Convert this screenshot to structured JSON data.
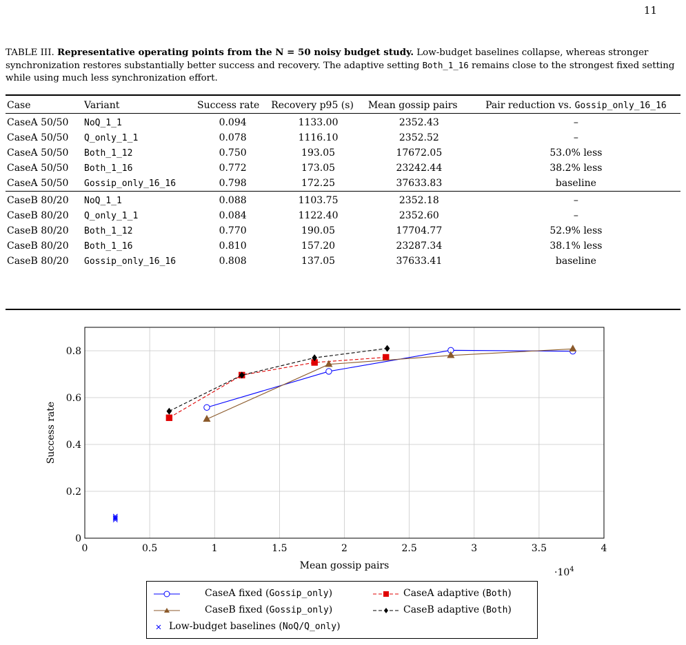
{
  "page_number": "11",
  "caption": {
    "label": "TABLE III.",
    "title": "Representative operating points from the N = 50 noisy budget study.",
    "text_a": "Low-budget baselines collapse, whereas stronger synchronization restores substantially better success and recovery. The adaptive setting",
    "mono_name": "Both_1_16",
    "text_b": "remains close to the strongest fixed setting while using much less synchronization effort."
  },
  "table": {
    "headers": {
      "case": "Case",
      "variant": "Variant",
      "success": "Success rate",
      "recovery": "Recovery p95 (s)",
      "pairs": "Mean gossip pairs",
      "reduction_prefix": "Pair reduction vs.",
      "reduction_ref": "Gossip_only_16_16"
    },
    "groups": [
      [
        {
          "case": "CaseA 50/50",
          "variant": "NoQ_1_1",
          "success": "0.094",
          "recovery": "1133.00",
          "pairs": "2352.43",
          "reduction": "–"
        },
        {
          "case": "CaseA 50/50",
          "variant": "Q_only_1_1",
          "success": "0.078",
          "recovery": "1116.10",
          "pairs": "2352.52",
          "reduction": "–"
        },
        {
          "case": "CaseA 50/50",
          "variant": "Both_1_12",
          "success": "0.750",
          "recovery": "193.05",
          "pairs": "17672.05",
          "reduction": "53.0% less"
        },
        {
          "case": "CaseA 50/50",
          "variant": "Both_1_16",
          "success": "0.772",
          "recovery": "173.05",
          "pairs": "23242.44",
          "reduction": "38.2% less"
        },
        {
          "case": "CaseA 50/50",
          "variant": "Gossip_only_16_16",
          "success": "0.798",
          "recovery": "172.25",
          "pairs": "37633.83",
          "reduction": "baseline"
        }
      ],
      [
        {
          "case": "CaseB 80/20",
          "variant": "NoQ_1_1",
          "success": "0.088",
          "recovery": "1103.75",
          "pairs": "2352.18",
          "reduction": "–"
        },
        {
          "case": "CaseB 80/20",
          "variant": "Q_only_1_1",
          "success": "0.084",
          "recovery": "1122.40",
          "pairs": "2352.60",
          "reduction": "–"
        },
        {
          "case": "CaseB 80/20",
          "variant": "Both_1_12",
          "success": "0.770",
          "recovery": "190.05",
          "pairs": "17704.77",
          "reduction": "52.9% less"
        },
        {
          "case": "CaseB 80/20",
          "variant": "Both_1_16",
          "success": "0.810",
          "recovery": "157.20",
          "pairs": "23287.34",
          "reduction": "38.1% less"
        },
        {
          "case": "CaseB 80/20",
          "variant": "Gossip_only_16_16",
          "success": "0.808",
          "recovery": "137.05",
          "pairs": "37633.41",
          "reduction": "baseline"
        }
      ]
    ]
  },
  "chart_data": {
    "type": "line",
    "xlabel": "Mean gossip pairs",
    "ylabel": "Success rate",
    "x_multiplier_label": "·10",
    "x_multiplier_exp": "4",
    "xlim": [
      0,
      40000
    ],
    "ylim": [
      0,
      0.9
    ],
    "xticks": [
      0,
      5000,
      10000,
      15000,
      20000,
      25000,
      30000,
      35000,
      40000
    ],
    "xtick_labels": [
      "0",
      "0.5",
      "1",
      "1.5",
      "2",
      "2.5",
      "3",
      "3.5",
      "4"
    ],
    "yticks": [
      0,
      0.2,
      0.4,
      0.6,
      0.8
    ],
    "ytick_labels": [
      "0",
      "0.2",
      "0.4",
      "0.6",
      "0.8"
    ],
    "grid": true,
    "legend_position": "below",
    "series": [
      {
        "name": "CaseA fixed (Gossip_only)",
        "label_text": "CaseA fixed (",
        "label_mono": "Gossip_only",
        "label_end": ")",
        "color": "#0000ff",
        "dash": "solid",
        "marker": "circle",
        "points": [
          [
            9400,
            0.558
          ],
          [
            18800,
            0.712
          ],
          [
            28200,
            0.802
          ],
          [
            37600,
            0.798
          ]
        ]
      },
      {
        "name": "CaseA adaptive (Both)",
        "label_text": "CaseA adaptive (",
        "label_mono": "Both",
        "label_end": ")",
        "color": "#e00000",
        "dash": "dashed",
        "marker": "square",
        "points": [
          [
            6500,
            0.514
          ],
          [
            12100,
            0.696
          ],
          [
            17700,
            0.75
          ],
          [
            23200,
            0.772
          ]
        ]
      },
      {
        "name": "CaseB fixed (Gossip_only)",
        "label_text": "CaseB fixed (",
        "label_mono": "Gossip_only",
        "label_end": ")",
        "color": "#8b5a2b",
        "dash": "solid",
        "marker": "triangle",
        "points": [
          [
            9400,
            0.508
          ],
          [
            18800,
            0.742
          ],
          [
            28200,
            0.78
          ],
          [
            37600,
            0.808
          ]
        ]
      },
      {
        "name": "CaseB adaptive (Both)",
        "label_text": "CaseB adaptive (",
        "label_mono": "Both",
        "label_end": ")",
        "color": "#000000",
        "dash": "dashed",
        "marker": "diamond",
        "points": [
          [
            6500,
            0.542
          ],
          [
            12100,
            0.696
          ],
          [
            17700,
            0.77
          ],
          [
            23300,
            0.81
          ]
        ]
      },
      {
        "name": "Low-budget baselines (NoQ/Q_only)",
        "label_text": "Low-budget baselines (",
        "label_mono": "NoQ/Q_only",
        "label_end": ")",
        "color": "#0000ff",
        "dash": "none",
        "marker": "cross",
        "points": [
          [
            2352.43,
            0.094
          ],
          [
            2352.52,
            0.078
          ],
          [
            2352.18,
            0.088
          ],
          [
            2352.6,
            0.084
          ]
        ]
      }
    ]
  }
}
